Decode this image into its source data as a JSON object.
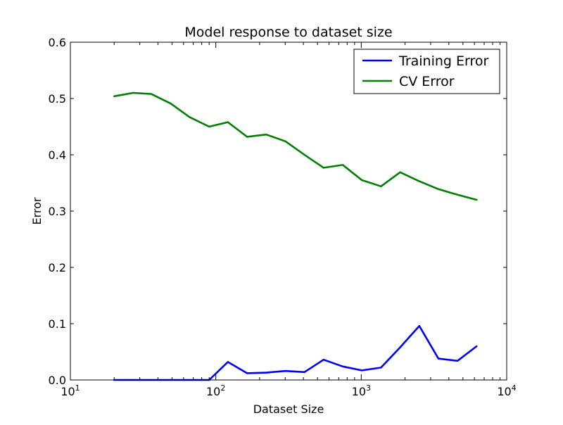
{
  "chart_data": {
    "type": "line",
    "title": "Model response to dataset size",
    "xlabel": "Dataset Size",
    "ylabel": "Error",
    "xscale": "log",
    "xlim": [
      10,
      10000
    ],
    "ylim": [
      0,
      0.6
    ],
    "grid": false,
    "legend_position": "top-right",
    "x_ticks": [
      {
        "value": 10,
        "base": "10",
        "exp": "1"
      },
      {
        "value": 100,
        "base": "10",
        "exp": "2"
      },
      {
        "value": 1000,
        "base": "10",
        "exp": "3"
      },
      {
        "value": 10000,
        "base": "10",
        "exp": "4"
      }
    ],
    "y_ticks": [
      {
        "value": 0.0,
        "label": "0.0"
      },
      {
        "value": 0.1,
        "label": "0.1"
      },
      {
        "value": 0.2,
        "label": "0.2"
      },
      {
        "value": 0.3,
        "label": "0.3"
      },
      {
        "value": 0.4,
        "label": "0.4"
      },
      {
        "value": 0.5,
        "label": "0.5"
      },
      {
        "value": 0.6,
        "label": "0.6"
      }
    ],
    "x": [
      20,
      27,
      36,
      49,
      66,
      90,
      121,
      164,
      222,
      301,
      407,
      551,
      746,
      1010,
      1367,
      1851,
      2506,
      3392,
      4593,
      6218
    ],
    "series": [
      {
        "name": "Training Error",
        "color": "#0000ff",
        "values": [
          0.0,
          0.0,
          0.0,
          0.0,
          0.0,
          0.0,
          0.032,
          0.012,
          0.013,
          0.016,
          0.014,
          0.036,
          0.024,
          0.017,
          0.022,
          0.058,
          0.096,
          0.038,
          0.034,
          0.06
        ]
      },
      {
        "name": "CV Error",
        "color": "#008000",
        "values": [
          0.504,
          0.51,
          0.508,
          0.491,
          0.467,
          0.45,
          0.458,
          0.432,
          0.436,
          0.424,
          0.4,
          0.377,
          0.382,
          0.355,
          0.344,
          0.369,
          0.353,
          0.339,
          0.329,
          0.32
        ]
      }
    ]
  }
}
